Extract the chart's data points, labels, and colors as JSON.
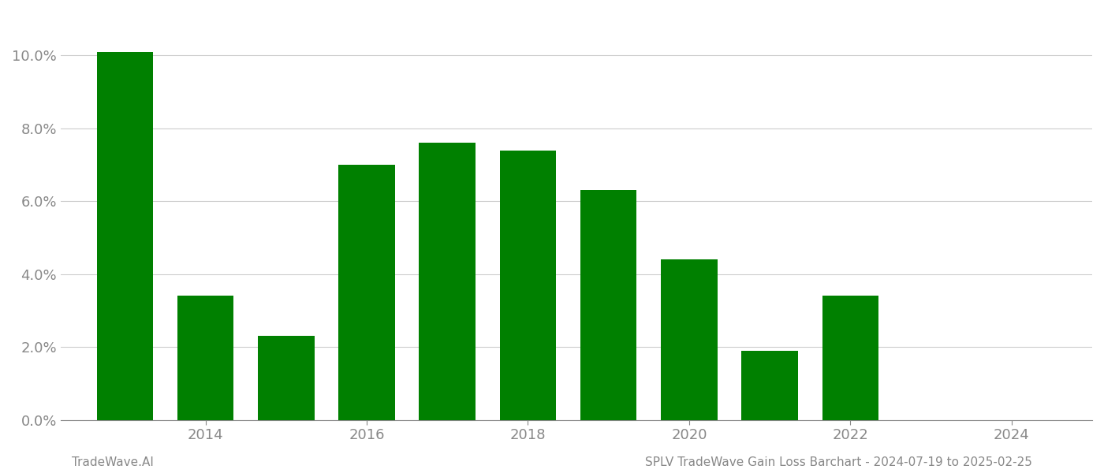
{
  "years": [
    2013,
    2014,
    2015,
    2016,
    2017,
    2018,
    2019,
    2020,
    2021,
    2022,
    2023
  ],
  "values": [
    0.101,
    0.034,
    0.023,
    0.07,
    0.076,
    0.074,
    0.063,
    0.044,
    0.019,
    0.034,
    0.0
  ],
  "bar_color": "#008000",
  "background_color": "#ffffff",
  "grid_color": "#cccccc",
  "axis_label_color": "#888888",
  "yticks": [
    0.0,
    0.02,
    0.04,
    0.06,
    0.08,
    0.1
  ],
  "xtick_years": [
    2014,
    2016,
    2018,
    2020,
    2022,
    2024
  ],
  "xlim_left": 2012.2,
  "xlim_right": 2025.0,
  "ylim": [
    0.0,
    0.112
  ],
  "bar_width": 0.7,
  "footer_left": "TradeWave.AI",
  "footer_right": "SPLV TradeWave Gain Loss Barchart - 2024-07-19 to 2025-02-25",
  "footer_color": "#888888",
  "footer_fontsize": 11,
  "tick_labelsize": 13
}
